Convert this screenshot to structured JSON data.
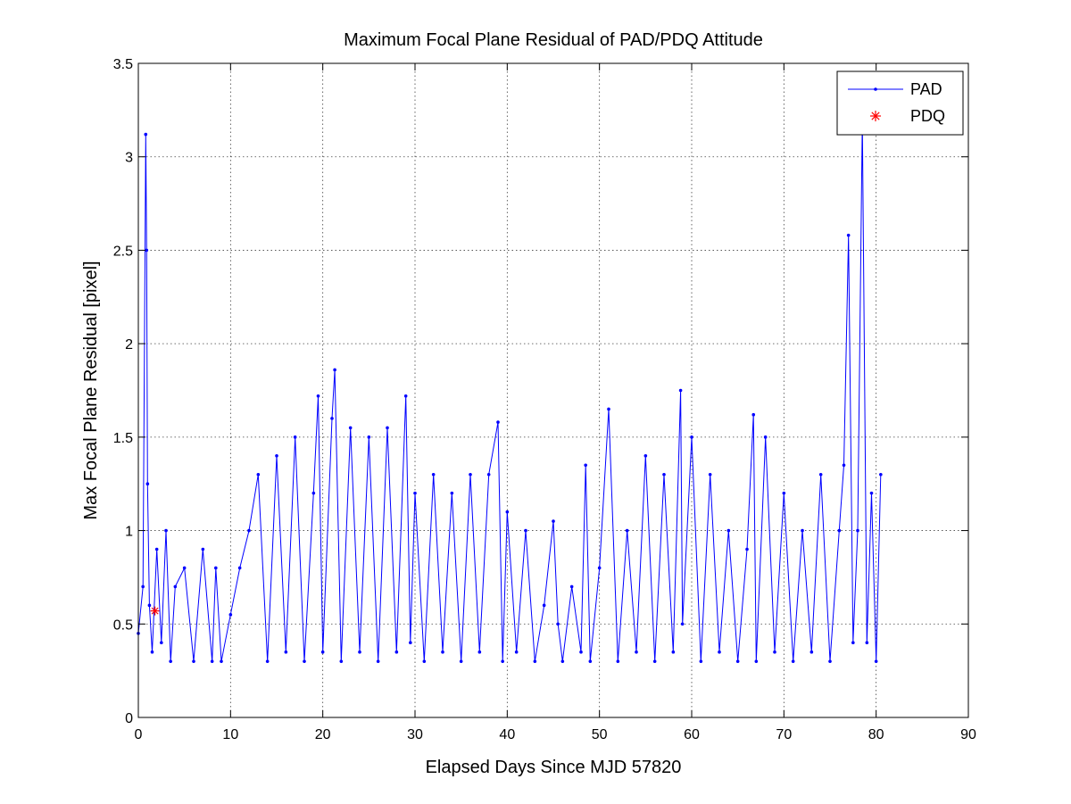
{
  "chart_data": {
    "type": "line",
    "title": "Maximum Focal Plane Residual of PAD/PDQ Attitude",
    "xlabel": "Elapsed Days Since MJD 57820",
    "ylabel": "Max Focal Plane Residual [pixel]",
    "xlim": [
      0,
      90
    ],
    "ylim": [
      0,
      3.5
    ],
    "xticks": [
      0,
      10,
      20,
      30,
      40,
      50,
      60,
      70,
      80,
      90
    ],
    "xtick_labels": [
      "0",
      "10",
      "20",
      "30",
      "40",
      "50",
      "60",
      "70",
      "80",
      "90"
    ],
    "yticks": [
      0,
      0.5,
      1,
      1.5,
      2,
      2.5,
      3,
      3.5
    ],
    "ytick_labels": [
      "0",
      "0.5",
      "1",
      "1.5",
      "2",
      "2.5",
      "3",
      "3.5"
    ],
    "grid": true,
    "legend_position": "top-right",
    "series": [
      {
        "name": "PAD",
        "color": "#0000ff",
        "marker": "dot",
        "x": [
          0,
          0.5,
          0.8,
          0.9,
          1.0,
          1.2,
          1.5,
          2.0,
          2.5,
          3.0,
          3.5,
          4.0,
          5.0,
          6.0,
          7.0,
          8.0,
          8.4,
          9.0,
          10.0,
          11.0,
          12.0,
          13.0,
          14.0,
          15.0,
          16.0,
          17.0,
          18.0,
          19.0,
          19.5,
          20.0,
          21.0,
          21.3,
          22.0,
          23.0,
          24.0,
          25.0,
          26.0,
          27.0,
          28.0,
          29.0,
          29.5,
          30.0,
          31.0,
          32.0,
          33.0,
          34.0,
          35.0,
          36.0,
          37.0,
          38.0,
          39.0,
          39.5,
          40.0,
          41.0,
          42.0,
          43.0,
          44.0,
          45.0,
          45.5,
          46.0,
          47.0,
          48.0,
          48.5,
          49.0,
          50.0,
          51.0,
          52.0,
          53.0,
          54.0,
          55.0,
          56.0,
          57.0,
          58.0,
          58.8,
          59.0,
          60.0,
          61.0,
          62.0,
          63.0,
          64.0,
          65.0,
          66.0,
          66.7,
          67.0,
          68.0,
          69.0,
          70.0,
          71.0,
          72.0,
          73.0,
          74.0,
          75.0,
          76.0,
          76.5,
          77.0,
          77.5,
          78.0,
          78.5,
          79.0,
          79.5,
          80.0,
          80.5
        ],
        "y": [
          0.45,
          0.7,
          3.12,
          2.5,
          1.25,
          0.6,
          0.35,
          0.9,
          0.4,
          1.0,
          0.3,
          0.7,
          0.8,
          0.3,
          0.9,
          0.3,
          0.8,
          0.3,
          0.55,
          0.8,
          1.0,
          1.3,
          0.3,
          1.4,
          0.35,
          1.5,
          0.3,
          1.2,
          1.72,
          0.35,
          1.6,
          1.86,
          0.3,
          1.55,
          0.35,
          1.5,
          0.3,
          1.55,
          0.35,
          1.72,
          0.4,
          1.2,
          0.3,
          1.3,
          0.35,
          1.2,
          0.3,
          1.3,
          0.35,
          1.3,
          1.58,
          0.3,
          1.1,
          0.35,
          1.0,
          0.3,
          0.6,
          1.05,
          0.5,
          0.3,
          0.7,
          0.35,
          1.35,
          0.3,
          0.8,
          1.65,
          0.3,
          1.0,
          0.35,
          1.4,
          0.3,
          1.3,
          0.35,
          1.75,
          0.5,
          1.5,
          0.3,
          1.3,
          0.35,
          1.0,
          0.3,
          0.9,
          1.62,
          0.3,
          1.5,
          0.35,
          1.2,
          0.3,
          1.0,
          0.35,
          1.3,
          0.3,
          1.0,
          1.35,
          2.58,
          0.4,
          1.0,
          3.2,
          0.4,
          1.2,
          0.3,
          1.3
        ]
      },
      {
        "name": "PDQ",
        "color": "#ff0000",
        "marker": "asterisk",
        "x": [
          1.8
        ],
        "y": [
          0.57
        ]
      }
    ]
  }
}
